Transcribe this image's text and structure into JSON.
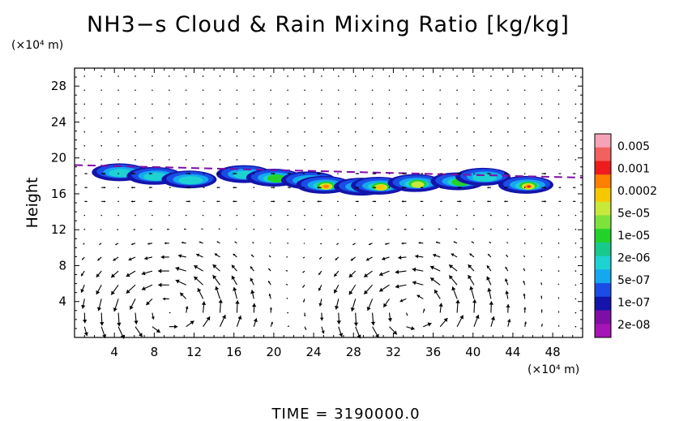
{
  "chart_data": {
    "type": "heatmap",
    "title": "NH3−s Cloud & Rain Mixing Ratio [kg/kg]",
    "y_unit": "(×10⁴ m)",
    "x_unit": "(×10⁴ m)",
    "ylabel": "Height",
    "xlabel": "",
    "xlim": [
      0,
      51
    ],
    "ylim": [
      0,
      30
    ],
    "x_ticks": [
      "4",
      "8",
      "12",
      "16",
      "20",
      "24",
      "28",
      "32",
      "36",
      "40",
      "44",
      "48"
    ],
    "y_ticks": [
      "4",
      "8",
      "12",
      "16",
      "20",
      "24",
      "28"
    ],
    "colorbar": {
      "labels": [
        "0.005",
        "0.001",
        "0.0002",
        "5e-05",
        "1e-05",
        "2e-06",
        "5e-07",
        "1e-07",
        "2e-08"
      ],
      "colors": [
        "#f5a3b8",
        "#f26060",
        "#ee1c1c",
        "#ff7f00",
        "#f5c800",
        "#c8e83c",
        "#7de23c",
        "#22d22a",
        "#18c98c",
        "#1ed2d2",
        "#15a8f0",
        "#1b4ce6",
        "#1414aa",
        "#7d0fa5",
        "#a514b4"
      ]
    },
    "cloud_layer": {
      "height_range": [
        16,
        19.5
      ],
      "cells": [
        {
          "x": 4.5,
          "y": 18.4,
          "level": 11
        },
        {
          "x": 8.0,
          "y": 18.0,
          "level": 10
        },
        {
          "x": 11.5,
          "y": 17.6,
          "level": 11
        },
        {
          "x": 17.0,
          "y": 18.2,
          "level": 12
        },
        {
          "x": 20.0,
          "y": 17.8,
          "level": 9
        },
        {
          "x": 23.5,
          "y": 17.5,
          "level": 5
        },
        {
          "x": 25.0,
          "y": 17.0,
          "level": 4
        },
        {
          "x": 28.8,
          "y": 16.8,
          "level": 3
        },
        {
          "x": 30.5,
          "y": 16.9,
          "level": 5
        },
        {
          "x": 34.2,
          "y": 17.2,
          "level": 6
        },
        {
          "x": 38.5,
          "y": 17.4,
          "level": 9
        },
        {
          "x": 41.0,
          "y": 17.9,
          "level": 11
        },
        {
          "x": 45.3,
          "y": 17.0,
          "level": 3
        }
      ]
    },
    "wind_field": {
      "type": "vectors",
      "cells": [
        {
          "center_x": 9.5,
          "center_y": 3.0,
          "direction": "counterclockwise"
        },
        {
          "center_x": 34.0,
          "center_y": 3.0,
          "direction": "counterclockwise"
        }
      ]
    }
  },
  "footer": {
    "time_label": "TIME = 3190000.0"
  }
}
